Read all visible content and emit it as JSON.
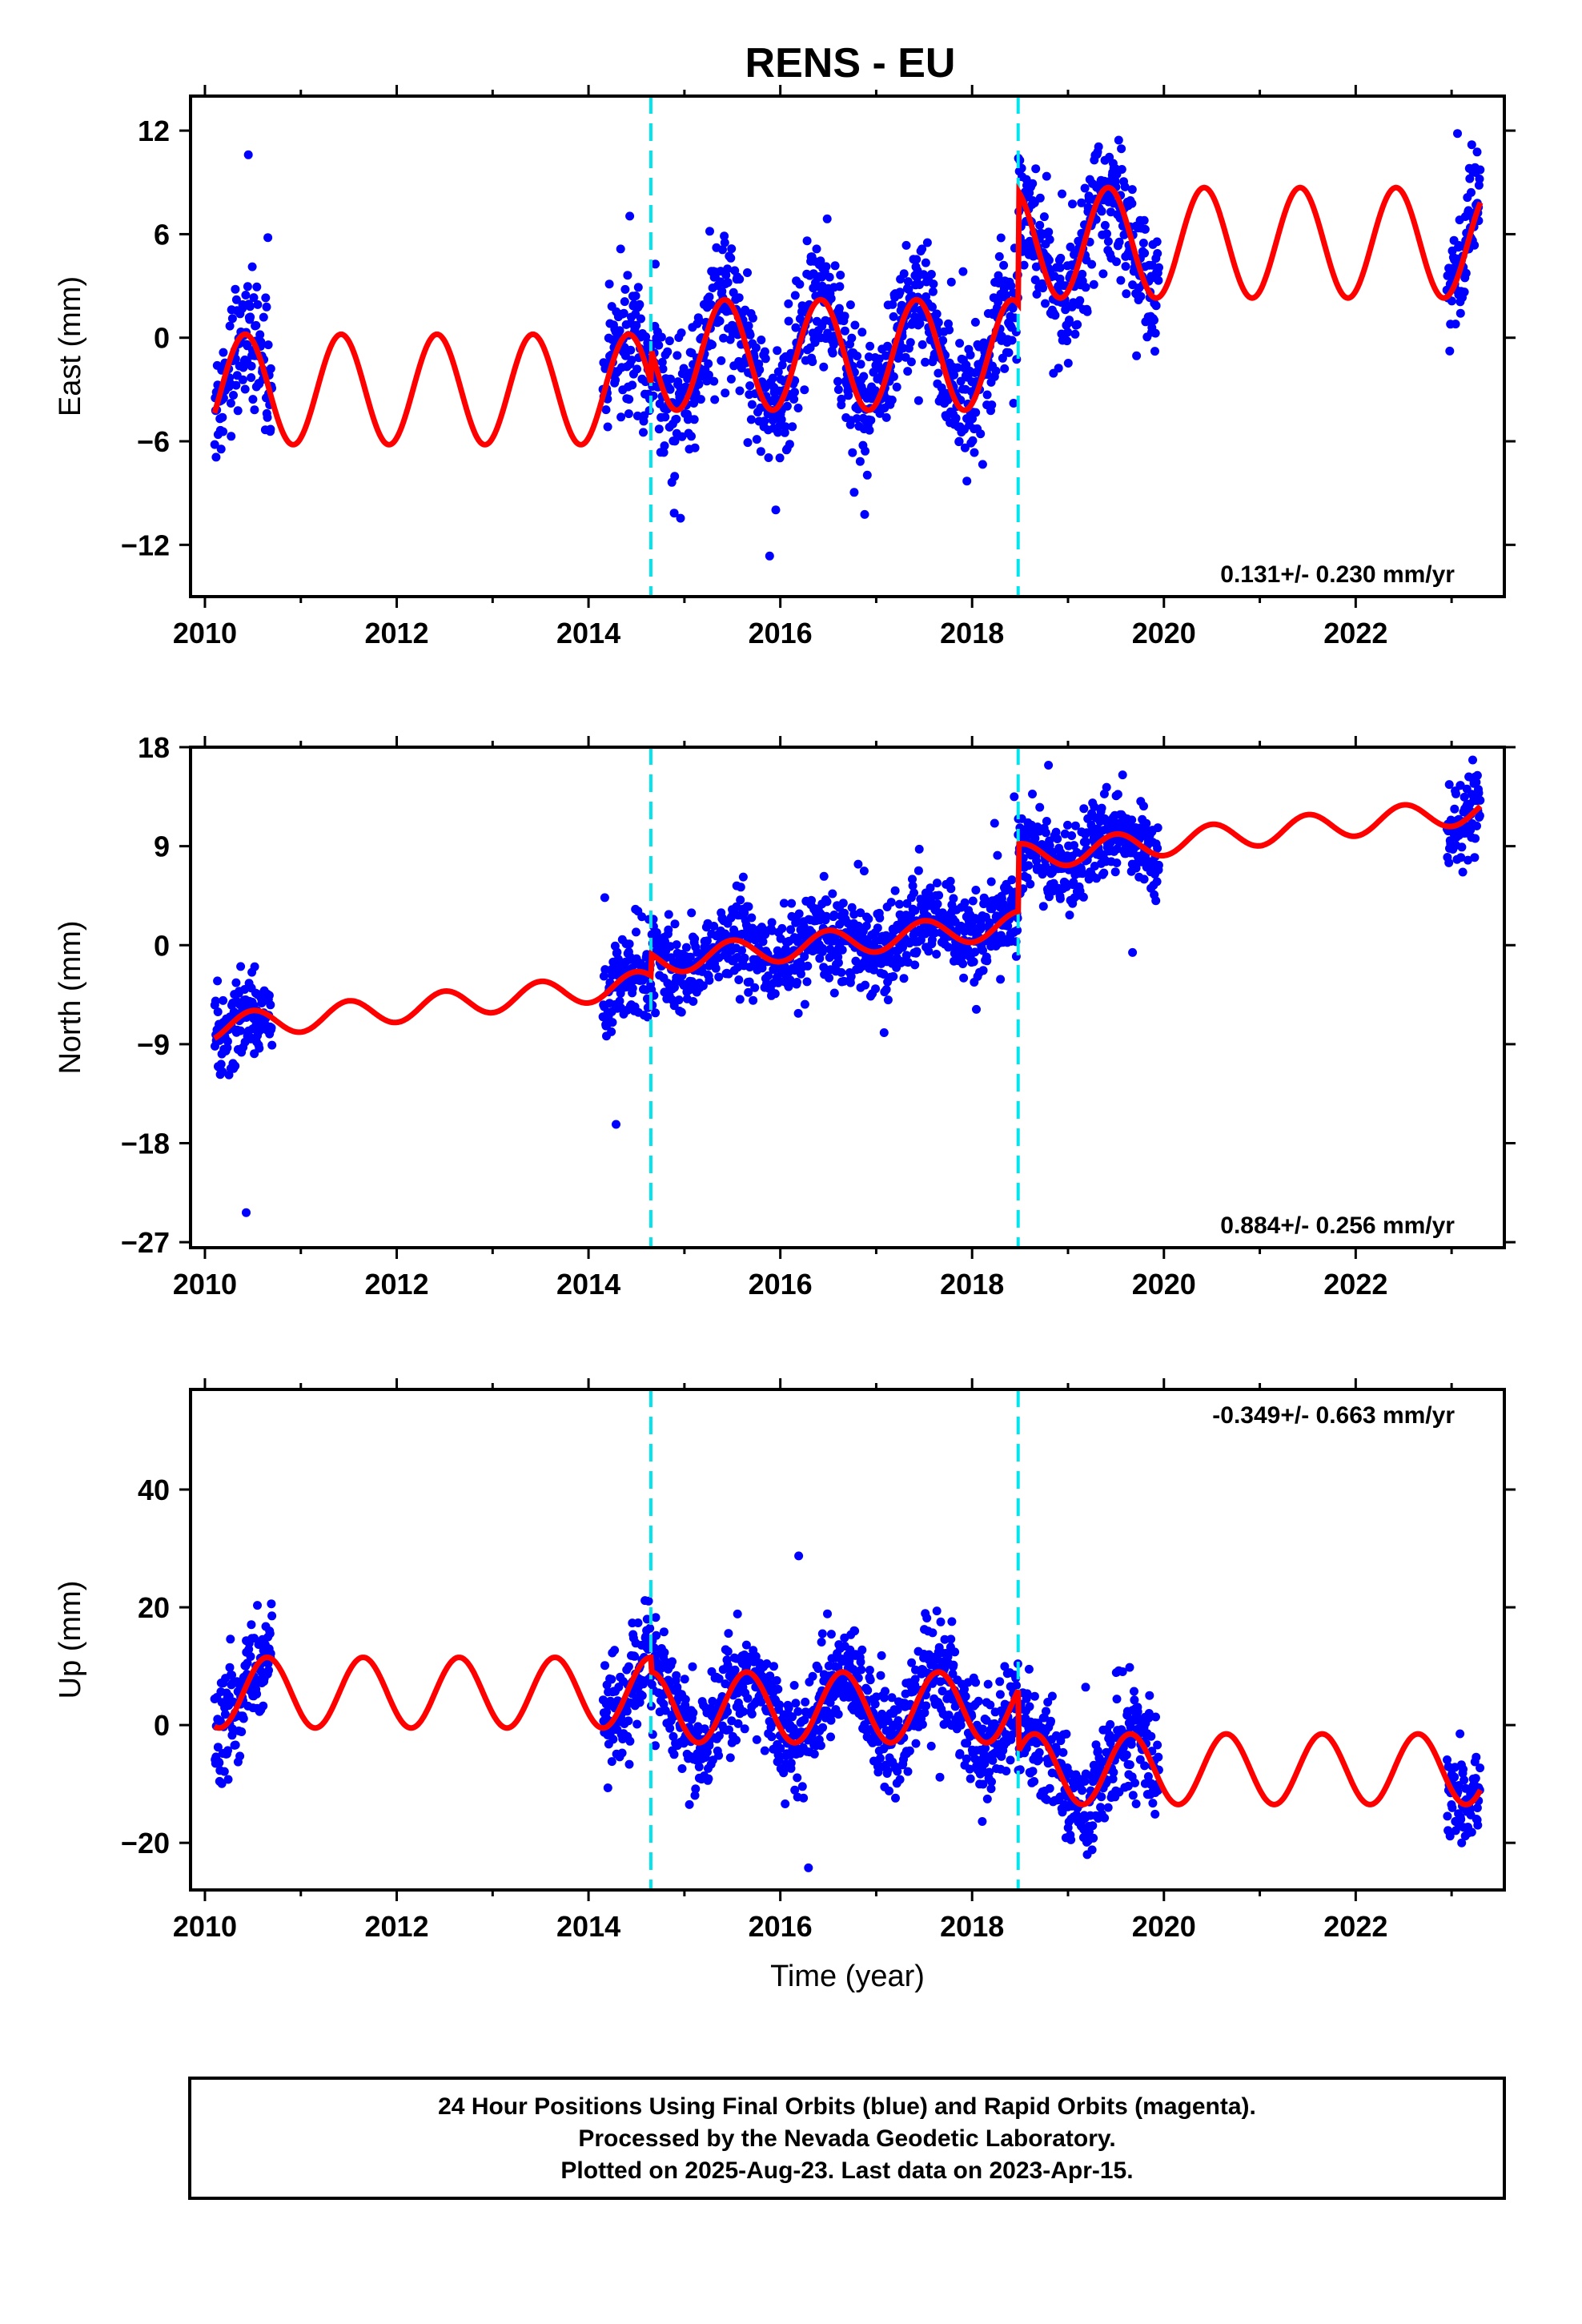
{
  "chart_data": [
    {
      "type": "scatter",
      "name": "east-panel",
      "title": "RENS - EU",
      "ylabel": "East (mm)",
      "xlabel": "",
      "xlim": [
        2009.85,
        2023.55
      ],
      "ylim": [
        -15,
        14
      ],
      "xticks": [
        "2010",
        "2012",
        "2014",
        "2016",
        "2018",
        "2020",
        "2022"
      ],
      "yticks": [
        "12",
        "6",
        "0",
        "-6",
        "-12"
      ],
      "ytick_values": [
        12,
        6,
        0,
        -6,
        -12
      ],
      "rate": "0.131+/- 0.230 mm/yr",
      "rate_position": "bottom-right",
      "breaks": [
        2014.65,
        2018.48
      ],
      "observation_segments": [
        [
          2010.1,
          2010.7
        ],
        [
          2014.15,
          2019.95
        ],
        [
          2022.95,
          2023.3
        ]
      ],
      "model": {
        "color": "#ff0000",
        "piecewise": [
          {
            "from": 2010.1,
            "to": 2014.65,
            "offset": -3.0,
            "amplitude": 3.2,
            "peak_phase": 0.42
          },
          {
            "from": 2014.65,
            "to": 2018.48,
            "offset": -1.0,
            "amplitude": 3.2,
            "peak_phase": 0.42
          },
          {
            "from": 2018.48,
            "to": 2023.3,
            "offset": 5.5,
            "amplitude": 3.2,
            "peak_phase": 0.42
          }
        ]
      },
      "scatter": {
        "color": "#0000ff",
        "noise": 1.8,
        "points_per_year": 220
      },
      "grid": false
    },
    {
      "type": "scatter",
      "name": "north-panel",
      "ylabel": "North (mm)",
      "xlabel": "",
      "xlim": [
        2009.85,
        2023.55
      ],
      "ylim": [
        -27.5,
        18
      ],
      "xticks": [
        "2010",
        "2012",
        "2014",
        "2016",
        "2018",
        "2020",
        "2022"
      ],
      "yticks": [
        "18",
        "9",
        "0",
        "-9",
        "-18",
        "-27"
      ],
      "ytick_values": [
        18,
        9,
        0,
        -9,
        -18,
        -27
      ],
      "rate": "0.884+/- 0.256 mm/yr",
      "rate_position": "bottom-right",
      "breaks": [
        2014.65,
        2018.48
      ],
      "observation_segments": [
        [
          2010.1,
          2010.7
        ],
        [
          2014.15,
          2019.95
        ],
        [
          2022.95,
          2023.3
        ]
      ],
      "model": {
        "color": "#ff0000",
        "piecewise": [
          {
            "from": 2010.1,
            "to": 2014.65,
            "offset": -7.5,
            "slope": 0.884,
            "amplitude": 1.2,
            "peak_phase": 0.5
          },
          {
            "from": 2014.65,
            "to": 2018.48,
            "offset": -1.5,
            "slope": 0.884,
            "amplitude": 1.2,
            "peak_phase": 0.5
          },
          {
            "from": 2018.48,
            "to": 2023.3,
            "offset": 8.0,
            "slope": 0.884,
            "amplitude": 1.2,
            "peak_phase": 0.5
          }
        ]
      },
      "scatter": {
        "color": "#0000ff",
        "noise": 2.0,
        "points_per_year": 220
      },
      "grid": false
    },
    {
      "type": "scatter",
      "name": "up-panel",
      "ylabel": "Up (mm)",
      "xlabel": "Time (year)",
      "xlim": [
        2009.85,
        2023.55
      ],
      "ylim": [
        -28,
        57
      ],
      "xticks": [
        "2010",
        "2012",
        "2014",
        "2016",
        "2018",
        "2020",
        "2022"
      ],
      "yticks": [
        "40",
        "20",
        "0",
        "-20"
      ],
      "ytick_values": [
        40,
        20,
        0,
        -20
      ],
      "rate": "-0.349+/- 0.663 mm/yr",
      "rate_position": "top-right",
      "breaks": [
        2014.65,
        2018.48
      ],
      "observation_segments": [
        [
          2010.1,
          2010.7
        ],
        [
          2014.15,
          2019.95
        ],
        [
          2022.95,
          2023.3
        ]
      ],
      "model": {
        "color": "#ff0000",
        "piecewise": [
          {
            "from": 2010.1,
            "to": 2014.65,
            "offset": 5.5,
            "amplitude": 6.0,
            "peak_phase": 0.65
          },
          {
            "from": 2014.65,
            "to": 2018.48,
            "offset": 3.0,
            "amplitude": 6.0,
            "peak_phase": 0.65
          },
          {
            "from": 2018.48,
            "to": 2023.3,
            "offset": -7.5,
            "amplitude": 6.0,
            "peak_phase": 0.65
          }
        ]
      },
      "scatter": {
        "color": "#0000ff",
        "noise": 4.5,
        "points_per_year": 220
      },
      "grid": false
    }
  ],
  "footer": {
    "line1": "24 Hour Positions Using Final Orbits (blue) and Rapid Orbits (magenta).",
    "line2": "Processed by the Nevada Geodetic Laboratory.",
    "line3": "Plotted on 2025-Aug-23. Last data on 2023-Apr-15."
  },
  "colors": {
    "final_orbits": "#0000ff",
    "model": "#ff0000",
    "break_line": "#00e5ee",
    "axis": "#000000"
  }
}
